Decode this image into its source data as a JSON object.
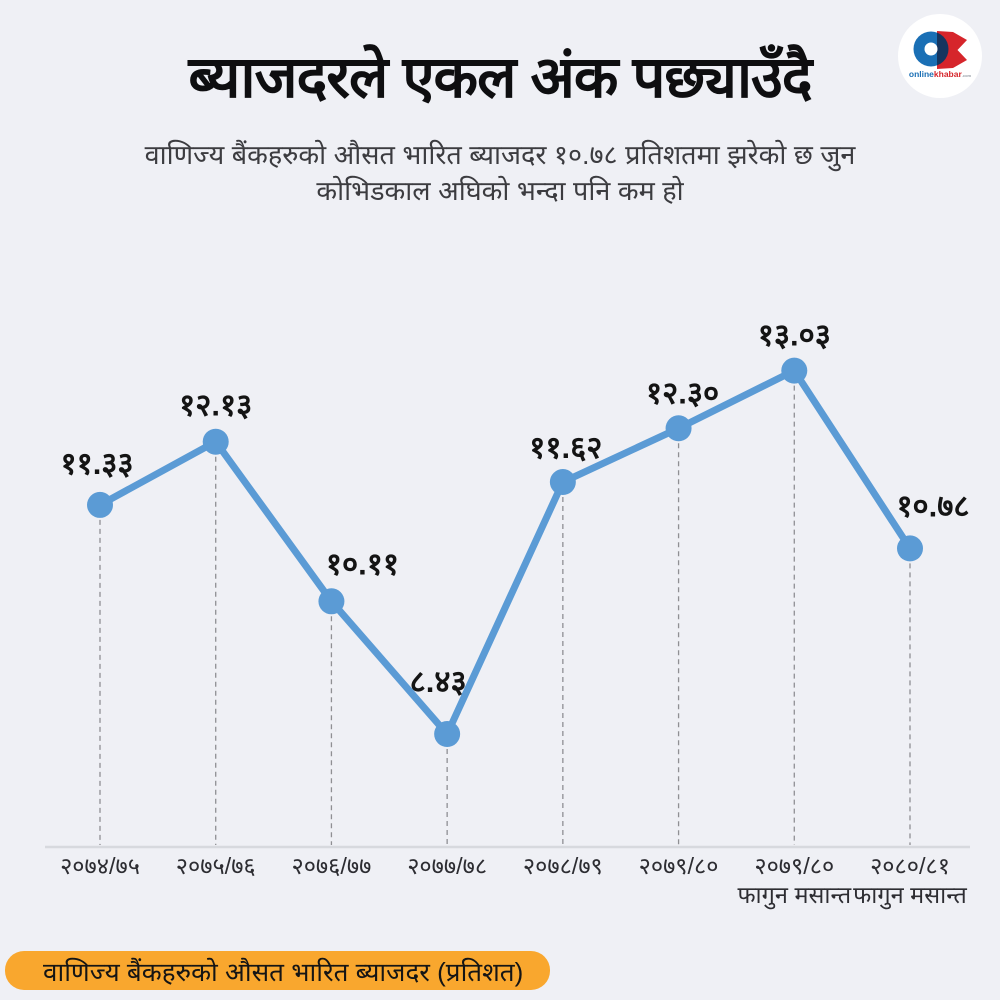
{
  "header": {
    "title": "ब्याजदरले एकल अंक पछ्याउँदै",
    "subtitle_line1": "वाणिज्य बैंकहरुको औसत भारित ब्याजदर १०.७८ प्रतिशतमा झरेको छ जुन",
    "subtitle_line2": "कोभिडकाल अघिको भन्दा पनि कम हो",
    "logo": {
      "brand_first": "online",
      "brand_second": "khabar",
      "brand_suffix": ".com"
    }
  },
  "chart_data": {
    "type": "line",
    "title": "ब्याजदरले एकल अंक पछ्याउँदै",
    "categories": [
      "२०७४/७५",
      "२०७५/७६",
      "२०७६/७७",
      "२०७७/७८",
      "२०७८/७९",
      "२०७९/८०",
      "२०७९/८० फागुन मसान्त",
      "२०८०/८१ फागुन मसान्त"
    ],
    "x_tick_lines": [
      [
        "२०७४/७५"
      ],
      [
        "२०७५/७६"
      ],
      [
        "२०७६/७७"
      ],
      [
        "२०७७/७८"
      ],
      [
        "२०७८/७९"
      ],
      [
        "२०७९/८०"
      ],
      [
        "२०७९/८०",
        "फागुन मसान्त"
      ],
      [
        "२०८०/८१",
        "फागुन मसान्त"
      ]
    ],
    "values": [
      11.33,
      12.13,
      10.11,
      8.43,
      11.62,
      12.3,
      13.03,
      10.78
    ],
    "value_labels": [
      "११.३३",
      "१२.१३",
      "१०.११",
      "८.४३",
      "११.६२",
      "१२.३०",
      "१३.०३",
      "१०.७८"
    ],
    "series": [
      {
        "name": "वाणिज्य बैंकहरुको औसत भारित ब्याजदर (प्रतिशत)",
        "values": [
          11.33,
          12.13,
          10.11,
          8.43,
          11.62,
          12.3,
          13.03,
          10.78
        ]
      }
    ],
    "xlabel": "",
    "ylabel": "",
    "ylim": [
      7.0,
      14.0
    ],
    "grid": "dashed vertical drop-lines only",
    "legend_position": "none",
    "line_color": "#5b9bd5"
  },
  "footer": {
    "label": "वाणिज्य बैंकहरुको औसत भारित ब्याजदर  (प्रतिशत)",
    "highlight_color": "#f9a72e"
  },
  "colors": {
    "background": "#eff0f5",
    "accent_blue": "#5b9bd5",
    "value_label_text": "#141414",
    "tick_label_text": "#2d2d32",
    "axis_line": "#d7d9de",
    "dashed_line": "#8f8f93",
    "title_text": "#0e0e10",
    "subtitle_text": "#3c3c40",
    "logo_blue": "#1a6fb5",
    "logo_red": "#d6252b",
    "logo_navy": "#16355f"
  }
}
